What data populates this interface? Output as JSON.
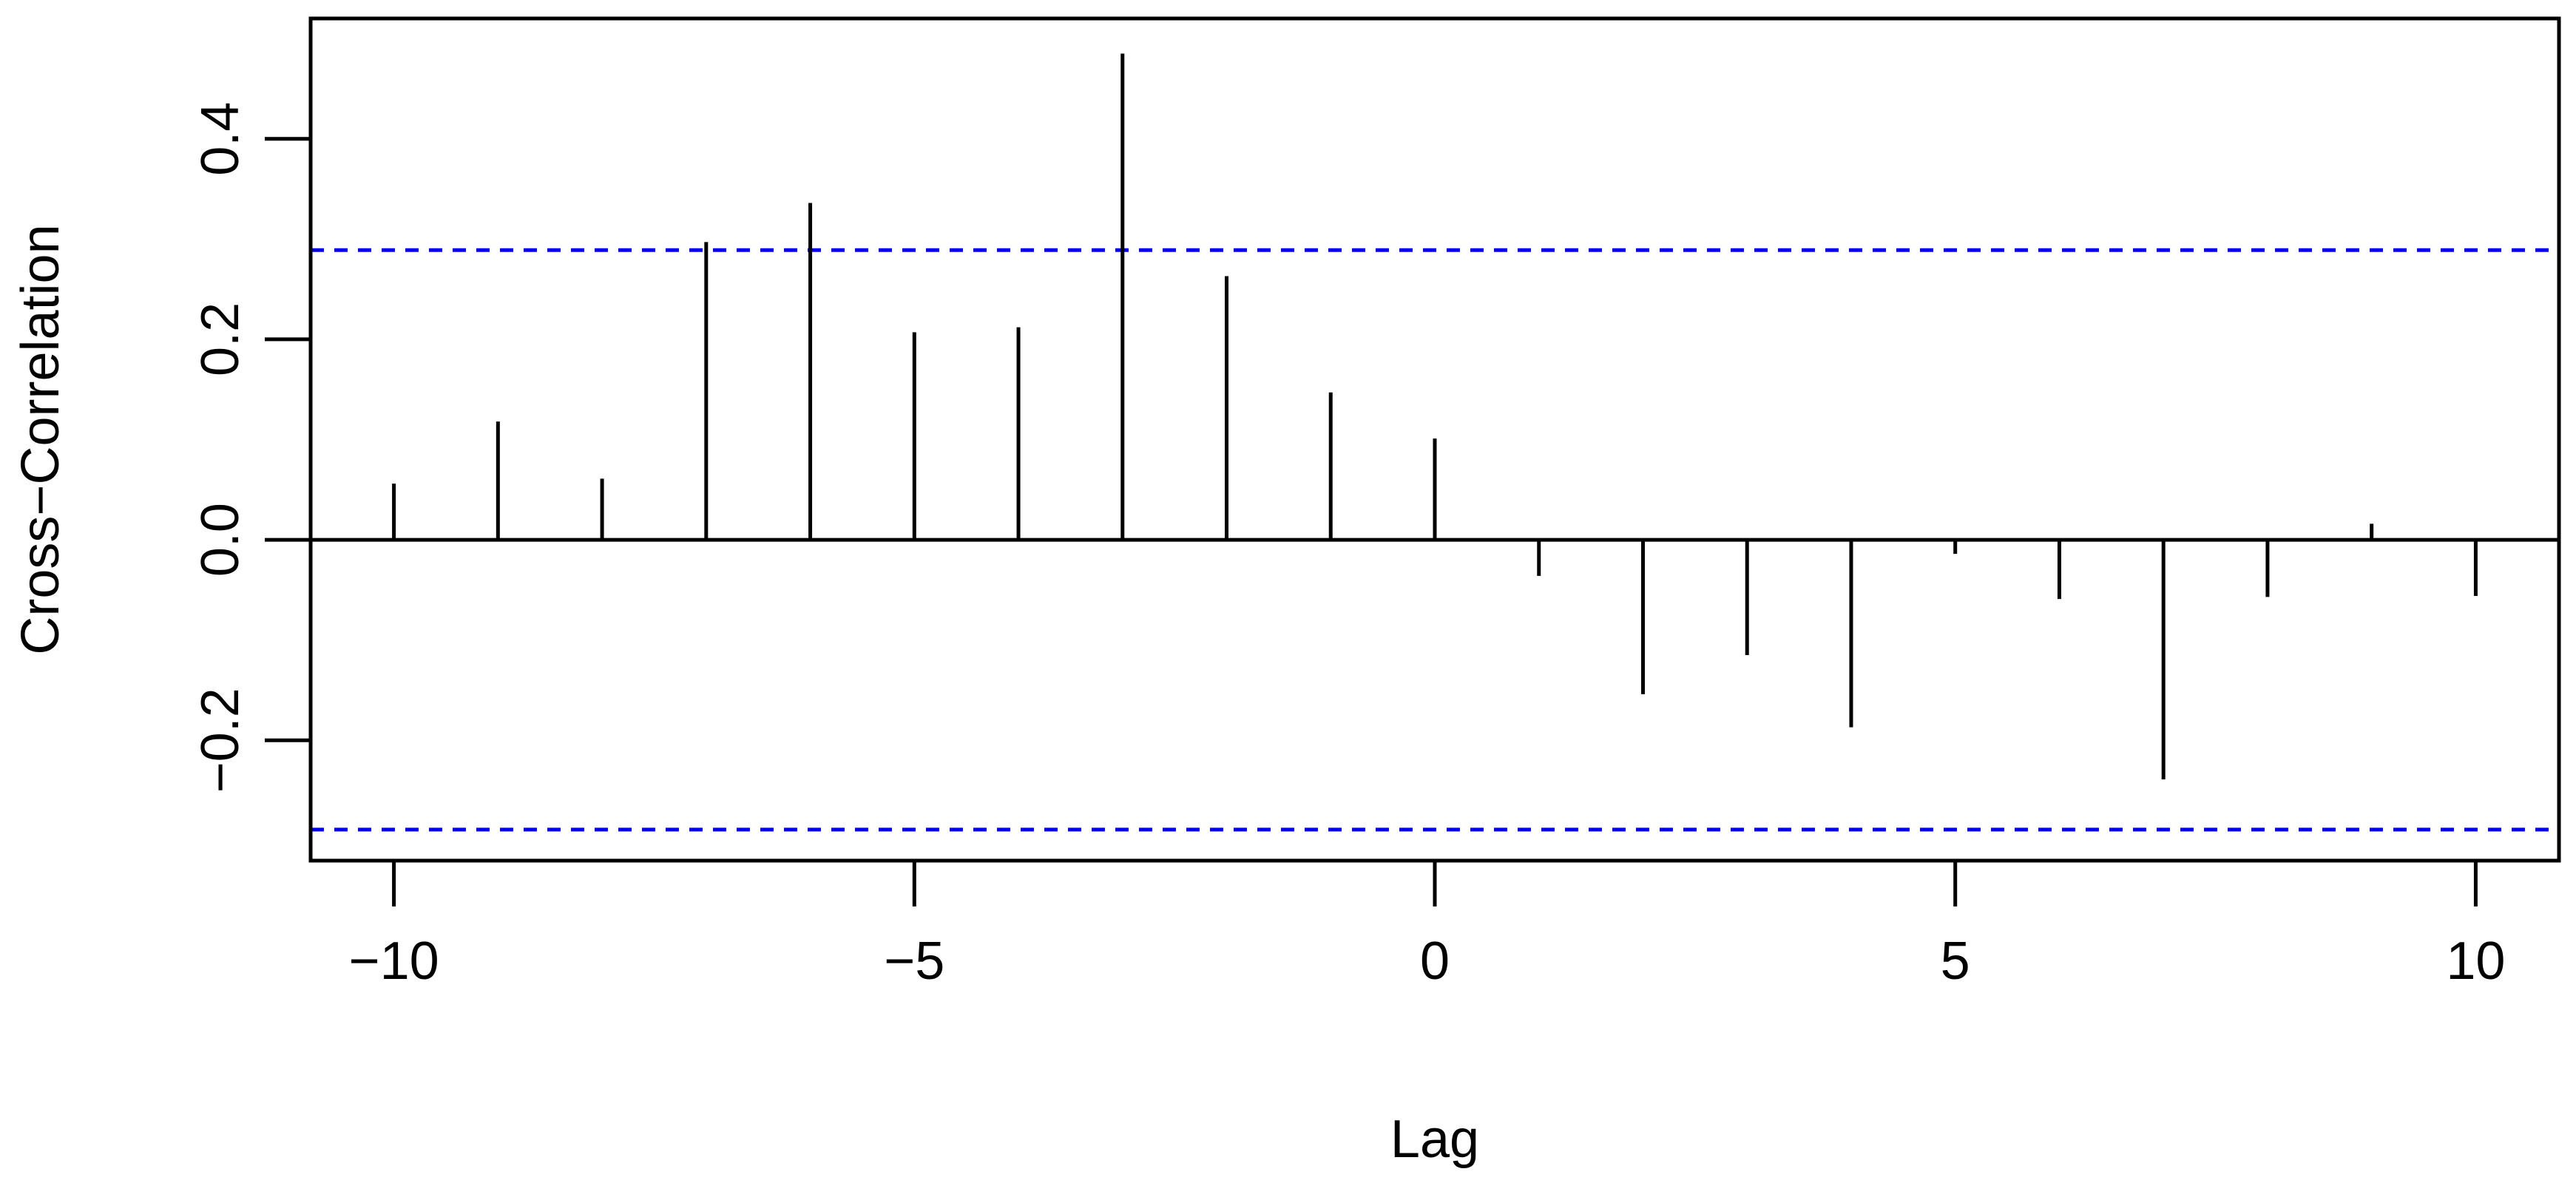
{
  "chart_data": {
    "type": "bar",
    "title": "",
    "xlabel": "Lag",
    "ylabel": "Cross−Correlation",
    "xlim": [
      -10.8,
      10.8
    ],
    "ylim": [
      -0.32,
      0.52
    ],
    "x_ticks": [
      -10,
      -5,
      0,
      5,
      10
    ],
    "x_tick_labels": [
      "−10",
      "−5",
      "0",
      "5",
      "10"
    ],
    "y_ticks": [
      -0.2,
      0.0,
      0.2,
      0.4
    ],
    "y_tick_labels": [
      "−0.2",
      "0.0",
      "0.2",
      "0.4"
    ],
    "grid": false,
    "lags": [
      -10,
      -9,
      -8,
      -7,
      -6,
      -5,
      -4,
      -3,
      -2,
      -1,
      0,
      1,
      2,
      3,
      4,
      5,
      6,
      7,
      8,
      9,
      10
    ],
    "values": [
      0.056,
      0.118,
      0.061,
      0.297,
      0.336,
      0.207,
      0.212,
      0.485,
      0.263,
      0.147,
      0.101,
      -0.036,
      -0.154,
      -0.115,
      -0.187,
      -0.014,
      -0.059,
      -0.239,
      -0.057,
      0.016,
      -0.056
    ],
    "confidence_bounds": [
      0.289,
      -0.289
    ],
    "colors": {
      "stems": "#000000",
      "zero_line": "#000000",
      "confidence": "#0000ee",
      "frame": "#000000"
    }
  }
}
